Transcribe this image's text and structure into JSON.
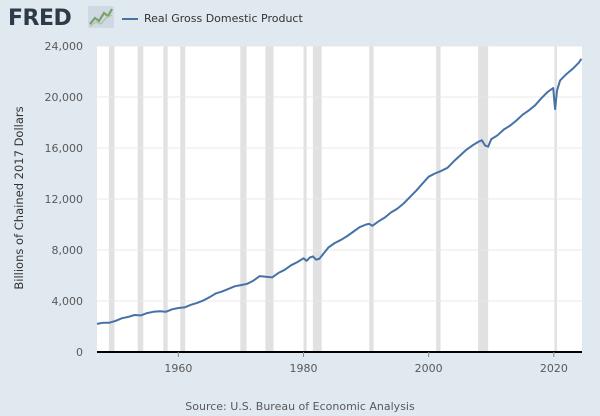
{
  "header": {
    "logo": "FRED",
    "logo_icon": "fred-chart-logo-icon",
    "legend_label": "Real Gross Domestic Product"
  },
  "source": "Source: U.S. Bureau of Economic Analysis",
  "colors": {
    "background": "#e1e9f0",
    "plot_background": "#ffffff",
    "series": "#4572a7",
    "recession": "#e1e1e1",
    "grid": "#e8e8e8"
  },
  "chart_data": {
    "type": "line",
    "title": "",
    "xlabel": "",
    "ylabel": "Billions of Chained 2017 Dollars",
    "xlim": [
      1947,
      2024.5
    ],
    "ylim": [
      0,
      24000
    ],
    "x_ticks": [
      1960,
      1980,
      2000,
      2020
    ],
    "x_tick_labels": [
      "1960",
      "1980",
      "2000",
      "2020"
    ],
    "y_ticks": [
      0,
      4000,
      8000,
      12000,
      16000,
      20000,
      24000
    ],
    "y_tick_labels": [
      "0",
      "4,000",
      "8,000",
      "12,000",
      "16,000",
      "20,000",
      "24,000"
    ],
    "grid": "horizontal",
    "legend": "top-left, above plot",
    "recessions": [
      [
        1948.9,
        1949.8
      ],
      [
        1953.5,
        1954.4
      ],
      [
        1957.6,
        1958.3
      ],
      [
        1960.3,
        1961.1
      ],
      [
        1969.9,
        1970.9
      ],
      [
        1973.9,
        1975.2
      ],
      [
        1980.0,
        1980.5
      ],
      [
        1981.5,
        1982.9
      ],
      [
        1990.5,
        1991.2
      ],
      [
        2001.2,
        2001.9
      ],
      [
        2007.9,
        2009.5
      ],
      [
        2020.1,
        2020.4
      ]
    ],
    "series": [
      {
        "name": "Real Gross Domestic Product",
        "color": "#4572a7",
        "x": [
          1947,
          1948,
          1949,
          1950,
          1951,
          1952,
          1953,
          1954,
          1955,
          1956,
          1957,
          1958,
          1959,
          1960,
          1961,
          1962,
          1963,
          1964,
          1965,
          1966,
          1967,
          1968,
          1969,
          1970,
          1971,
          1972,
          1973,
          1974,
          1975,
          1976,
          1977,
          1978,
          1979,
          1980,
          1980.5,
          1981,
          1981.5,
          1982,
          1982.5,
          1983,
          1984,
          1985,
          1986,
          1987,
          1988,
          1989,
          1990,
          1990.5,
          1991,
          1992,
          1993,
          1994,
          1995,
          1996,
          1997,
          1998,
          1999,
          2000,
          2001,
          2002,
          2003,
          2004,
          2005,
          2006,
          2007,
          2008,
          2008.5,
          2009,
          2009.5,
          2010,
          2011,
          2012,
          2013,
          2014,
          2015,
          2016,
          2017,
          2018,
          2019,
          2019.9,
          2020.2,
          2020.5,
          2021,
          2022,
          2023,
          2024,
          2024.4
        ],
        "y": [
          2200,
          2300,
          2300,
          2450,
          2650,
          2750,
          2900,
          2870,
          3050,
          3150,
          3200,
          3150,
          3350,
          3450,
          3500,
          3700,
          3850,
          4050,
          4300,
          4600,
          4750,
          4950,
          5150,
          5250,
          5350,
          5600,
          5950,
          5900,
          5850,
          6200,
          6450,
          6800,
          7050,
          7350,
          7150,
          7400,
          7500,
          7250,
          7300,
          7600,
          8200,
          8550,
          8800,
          9100,
          9450,
          9800,
          10000,
          10050,
          9900,
          10250,
          10550,
          10950,
          11250,
          11650,
          12150,
          12650,
          13200,
          13750,
          14000,
          14200,
          14450,
          14950,
          15400,
          15850,
          16200,
          16500,
          16600,
          16200,
          16100,
          16700,
          17000,
          17450,
          17750,
          18150,
          18600,
          18950,
          19350,
          19900,
          20400,
          20700,
          19050,
          20500,
          21300,
          21800,
          22200,
          22700,
          23000
        ]
      }
    ]
  }
}
